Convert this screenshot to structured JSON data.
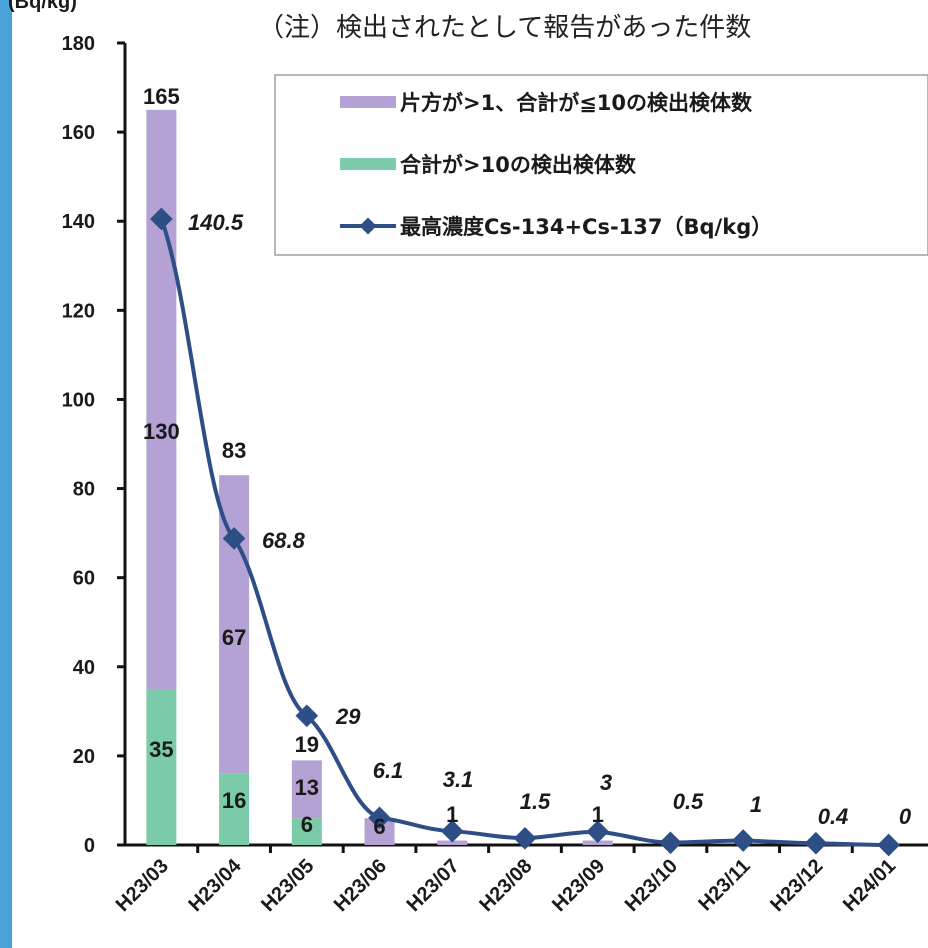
{
  "note": "（注）検出されたとして報告があった件数",
  "y_unit": "(Bq/kg)",
  "colors": {
    "purple": "#b3a2d3",
    "green": "#7ccba8",
    "line": "#2e4e86",
    "frame": "#4aa3d8",
    "axis": "#111111"
  },
  "chart_data": {
    "type": "bar",
    "stacked": true,
    "categories": [
      "H23/03",
      "H23/04",
      "H23/05",
      "H23/06",
      "H23/07",
      "H23/08",
      "H23/09",
      "H23/10",
      "H23/11",
      "H23/12",
      "H24/01"
    ],
    "ylim": [
      0,
      180
    ],
    "yticks": [
      0,
      20,
      40,
      60,
      80,
      100,
      120,
      140,
      160,
      180
    ],
    "legend_position": "top-right",
    "series": [
      {
        "name": "合計が>10の検出検体数",
        "kind": "bar",
        "color": "#7ccba8",
        "values": [
          35,
          16,
          6,
          0,
          0,
          0,
          0,
          0,
          0,
          0,
          0
        ],
        "labels": [
          "35",
          "16",
          "6",
          "",
          "",
          "",
          "",
          "",
          "",
          "",
          ""
        ]
      },
      {
        "name": "片方が>1、合計が≦10の検出検体数",
        "kind": "bar",
        "color": "#b3a2d3",
        "values": [
          130,
          67,
          13,
          6,
          1,
          0,
          1,
          0,
          0,
          0,
          0
        ],
        "labels": [
          "130",
          "67",
          "13",
          "6",
          "1",
          "",
          "1",
          "",
          "",
          "",
          ""
        ]
      },
      {
        "name": "最高濃度Cs-134+Cs-137（Bq/kg）",
        "kind": "line",
        "color": "#2e4e86",
        "values": [
          140.5,
          68.8,
          29,
          6.1,
          3.1,
          1.5,
          3,
          0.5,
          1,
          0.4,
          0
        ],
        "labels": [
          "140.5",
          "68.8",
          "29",
          "6.1",
          "3.1",
          "1.5",
          "3",
          "0.5",
          "1",
          "0.4",
          "0"
        ]
      }
    ],
    "totals": [
      "165",
      "83",
      "19",
      "",
      "",
      "",
      "",
      "",
      "",
      "",
      ""
    ]
  }
}
